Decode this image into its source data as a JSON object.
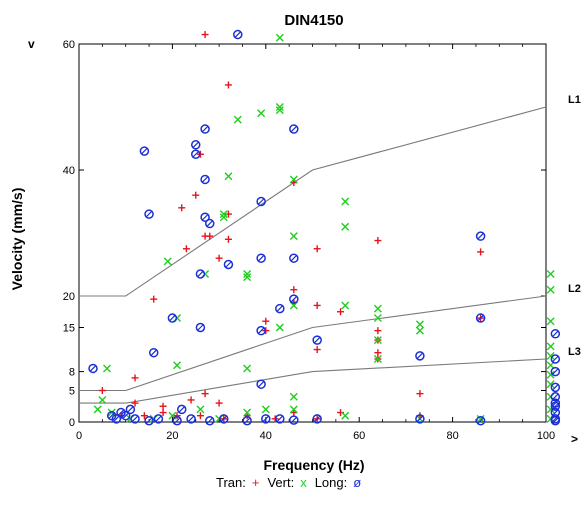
{
  "chart_data": {
    "type": "scatter",
    "title": "DIN4150",
    "xlabel": "Frequency (Hz)",
    "ylabel": "Velocity (mm/s)",
    "x_axis_marker": ">",
    "y_axis_marker": "v",
    "xlim": [
      0,
      100
    ],
    "ylim": [
      0,
      60
    ],
    "x_ticks": [
      0,
      20,
      40,
      60,
      80,
      100
    ],
    "y_ticks": [
      0,
      5,
      8,
      15,
      20,
      40,
      60
    ],
    "grid": false,
    "legend": {
      "placement": "bottom",
      "entries": [
        {
          "label": "Tran:",
          "symbol": "+",
          "color": "#e8141c"
        },
        {
          "label": "Vert:",
          "symbol": "x",
          "color": "#22cc22"
        },
        {
          "label": "Long:",
          "symbol": "ø",
          "color": "#1a2fd6"
        }
      ]
    },
    "reference_lines": [
      {
        "name": "L1",
        "color": "#7a7a7a",
        "points": [
          [
            0,
            20
          ],
          [
            10,
            20
          ],
          [
            50,
            40
          ],
          [
            100,
            50
          ]
        ]
      },
      {
        "name": "L2",
        "color": "#7a7a7a",
        "points": [
          [
            0,
            5
          ],
          [
            10,
            5
          ],
          [
            50,
            15
          ],
          [
            100,
            20
          ]
        ]
      },
      {
        "name": "L3",
        "color": "#7a7a7a",
        "points": [
          [
            0,
            3
          ],
          [
            10,
            3
          ],
          [
            50,
            8
          ],
          [
            100,
            10
          ]
        ]
      }
    ],
    "series": [
      {
        "name": "Tran",
        "marker": "plus",
        "color": "#e8141c",
        "points": [
          [
            27,
            61.5
          ],
          [
            32,
            53.5
          ],
          [
            26,
            42.5
          ],
          [
            25,
            36
          ],
          [
            22,
            34
          ],
          [
            32,
            33
          ],
          [
            28,
            29.5
          ],
          [
            27,
            29.5
          ],
          [
            23,
            27.5
          ],
          [
            32,
            29
          ],
          [
            30,
            26
          ],
          [
            46,
            38
          ],
          [
            51,
            27.5
          ],
          [
            64,
            28.8
          ],
          [
            86,
            27
          ],
          [
            16,
            19.5
          ],
          [
            46,
            21
          ],
          [
            46,
            19
          ],
          [
            51,
            18.5
          ],
          [
            56,
            17.5
          ],
          [
            40,
            16
          ],
          [
            40,
            14.5
          ],
          [
            64,
            14.5
          ],
          [
            64,
            13
          ],
          [
            51,
            11.5
          ],
          [
            64,
            11
          ],
          [
            64,
            10
          ],
          [
            73,
            4.5
          ],
          [
            73,
            1
          ],
          [
            5,
            5
          ],
          [
            12,
            7
          ],
          [
            12,
            3
          ],
          [
            18,
            2.5
          ],
          [
            24,
            3.5
          ],
          [
            27,
            4.5
          ],
          [
            30,
            3
          ],
          [
            46,
            1.5
          ],
          [
            36,
            1
          ],
          [
            42,
            0.5
          ],
          [
            9,
            1
          ],
          [
            14,
            1
          ],
          [
            18,
            1.5
          ],
          [
            21,
            1
          ],
          [
            26,
            1
          ],
          [
            31,
            0.5
          ],
          [
            51,
            0.5
          ],
          [
            86,
            16.5
          ],
          [
            56,
            1.5
          ]
        ]
      },
      {
        "name": "Vert",
        "marker": "x",
        "color": "#22cc22",
        "points": [
          [
            43,
            61
          ],
          [
            43,
            50
          ],
          [
            43,
            49.5
          ],
          [
            39,
            49
          ],
          [
            34,
            48
          ],
          [
            32,
            39
          ],
          [
            46,
            38.5
          ],
          [
            57,
            35
          ],
          [
            31,
            33
          ],
          [
            31,
            32.5
          ],
          [
            46,
            29.5
          ],
          [
            57,
            31
          ],
          [
            19,
            25.5
          ],
          [
            36,
            23.5
          ],
          [
            36,
            23
          ],
          [
            27,
            23.5
          ],
          [
            46,
            18.5
          ],
          [
            57,
            18.5
          ],
          [
            64,
            18
          ],
          [
            64,
            16.5
          ],
          [
            73,
            15.5
          ],
          [
            73,
            14.5
          ],
          [
            43,
            15
          ],
          [
            21,
            16.5
          ],
          [
            64,
            13
          ],
          [
            64,
            10
          ],
          [
            21,
            9
          ],
          [
            36,
            8.5
          ],
          [
            6,
            8.5
          ],
          [
            101,
            23.5
          ],
          [
            101,
            21
          ],
          [
            101,
            16
          ],
          [
            101,
            12
          ],
          [
            101,
            10.5
          ],
          [
            101,
            9
          ],
          [
            101,
            7.5
          ],
          [
            101,
            6
          ],
          [
            101,
            4
          ],
          [
            101,
            2
          ],
          [
            101,
            0.5
          ],
          [
            5,
            3.5
          ],
          [
            4,
            2
          ],
          [
            7,
            1.5
          ],
          [
            11,
            0.5
          ],
          [
            16,
            0.5
          ],
          [
            20,
            1
          ],
          [
            26,
            2
          ],
          [
            30,
            0.5
          ],
          [
            36,
            1.5
          ],
          [
            40,
            2
          ],
          [
            46,
            4
          ],
          [
            57,
            1
          ],
          [
            73,
            0.5
          ],
          [
            86,
            0.5
          ],
          [
            46,
            2
          ]
        ]
      },
      {
        "name": "Long",
        "marker": "ring",
        "color": "#1a2fd6",
        "points": [
          [
            34,
            61.5
          ],
          [
            27,
            46.5
          ],
          [
            46,
            46.5
          ],
          [
            14,
            43
          ],
          [
            25,
            42.5
          ],
          [
            25,
            44
          ],
          [
            27,
            38.5
          ],
          [
            39,
            35
          ],
          [
            15,
            33
          ],
          [
            27,
            32.5
          ],
          [
            28,
            31.5
          ],
          [
            39,
            26
          ],
          [
            46,
            26
          ],
          [
            32,
            25
          ],
          [
            26,
            23.5
          ],
          [
            86,
            29.5
          ],
          [
            43,
            18
          ],
          [
            46,
            19.5
          ],
          [
            20,
            16.5
          ],
          [
            26,
            15
          ],
          [
            39,
            14.5
          ],
          [
            51,
            13
          ],
          [
            86,
            16.5
          ],
          [
            73,
            10.5
          ],
          [
            16,
            11
          ],
          [
            3,
            8.5
          ],
          [
            39,
            6
          ],
          [
            102,
            14
          ],
          [
            102,
            10
          ],
          [
            102,
            8
          ],
          [
            102,
            5.5
          ],
          [
            102,
            3
          ],
          [
            102,
            1.5
          ],
          [
            102,
            0.5
          ],
          [
            102,
            2.5
          ],
          [
            102,
            4
          ],
          [
            102,
            0.2
          ],
          [
            22,
            2
          ],
          [
            7,
            1
          ],
          [
            8,
            0.5
          ],
          [
            10,
            1
          ],
          [
            11,
            2
          ],
          [
            12,
            0.5
          ],
          [
            15,
            0.2
          ],
          [
            17,
            0.5
          ],
          [
            21,
            0.2
          ],
          [
            24,
            0.5
          ],
          [
            28,
            0.2
          ],
          [
            31,
            0.5
          ],
          [
            36,
            0.2
          ],
          [
            40,
            0.5
          ],
          [
            46,
            0.3
          ],
          [
            51,
            0.5
          ],
          [
            73,
            0.5
          ],
          [
            86,
            0.2
          ],
          [
            43,
            0.5
          ],
          [
            9,
            1.5
          ]
        ]
      }
    ]
  }
}
